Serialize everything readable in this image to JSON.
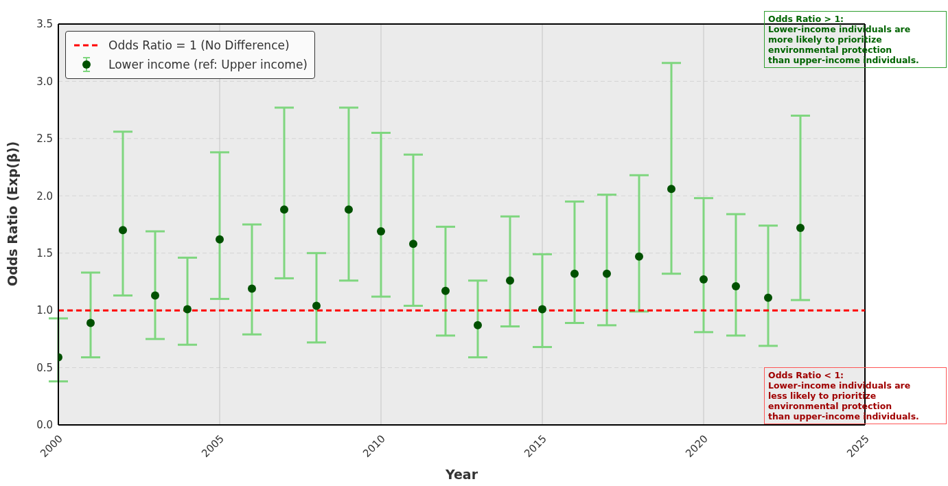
{
  "chart_data": {
    "type": "scatter",
    "xlabel": "Year",
    "ylabel": "Odds Ratio (Exp(β))",
    "x": [
      2000,
      2001,
      2002,
      2003,
      2004,
      2005,
      2006,
      2007,
      2008,
      2009,
      2010,
      2011,
      2012,
      2013,
      2014,
      2015,
      2016,
      2017,
      2018,
      2019,
      2020,
      2021,
      2022,
      2023
    ],
    "series": [
      {
        "name": "Lower income (ref: Upper income)",
        "color": "#005000",
        "values": [
          0.59,
          0.89,
          1.7,
          1.13,
          1.01,
          1.62,
          1.19,
          1.88,
          1.04,
          1.88,
          1.69,
          1.58,
          1.17,
          0.87,
          1.26,
          1.01,
          1.32,
          1.32,
          1.47,
          2.06,
          1.27,
          1.21,
          1.11,
          1.72
        ],
        "errors": [
          [
            0.38,
            0.93
          ],
          [
            0.59,
            1.33
          ],
          [
            1.13,
            2.56
          ],
          [
            0.75,
            1.69
          ],
          [
            0.7,
            1.46
          ],
          [
            1.1,
            2.38
          ],
          [
            0.79,
            1.75
          ],
          [
            1.28,
            2.77
          ],
          [
            0.72,
            1.5
          ],
          [
            1.26,
            2.77
          ],
          [
            1.12,
            2.55
          ],
          [
            1.04,
            2.36
          ],
          [
            0.78,
            1.73
          ],
          [
            0.59,
            1.26
          ],
          [
            0.86,
            1.82
          ],
          [
            0.68,
            1.49
          ],
          [
            0.89,
            1.95
          ],
          [
            0.87,
            2.01
          ],
          [
            0.99,
            2.18
          ],
          [
            1.32,
            3.16
          ],
          [
            0.81,
            1.98
          ],
          [
            0.78,
            1.84
          ],
          [
            0.69,
            1.74
          ],
          [
            1.09,
            2.7
          ]
        ]
      }
    ],
    "xlim": [
      2000,
      2025
    ],
    "xticks": [
      2000,
      2005,
      2010,
      2015,
      2020,
      2025
    ],
    "ylim": [
      0,
      3.5
    ],
    "yticks": [
      {
        "value": 0,
        "label": "0.0"
      },
      0.5,
      {
        "value": 1,
        "label": "1.0"
      },
      1.5,
      {
        "value": 2,
        "label": "2.0"
      },
      2.5,
      {
        "value": 3,
        "label": "3.0"
      },
      3.5
    ],
    "ref_lines": [
      {
        "axis": "y",
        "value": 1,
        "label": "Odds Ratio = 1 (No Difference)",
        "color": "#ff0000",
        "line_style": "dashed"
      }
    ],
    "annotations": [
      "Odds Ratio > 1:\nLower-income individuals are\nmore likely to prioritize\nenvironmental protection\nthan upper-income individuals.",
      "Odds Ratio < 1:\nLower-income individuals are\nless likely to prioritize\nenvironmental protection\nthan upper-income individuals."
    ],
    "grid": true,
    "legend": "top left",
    "marker": "circle"
  }
}
